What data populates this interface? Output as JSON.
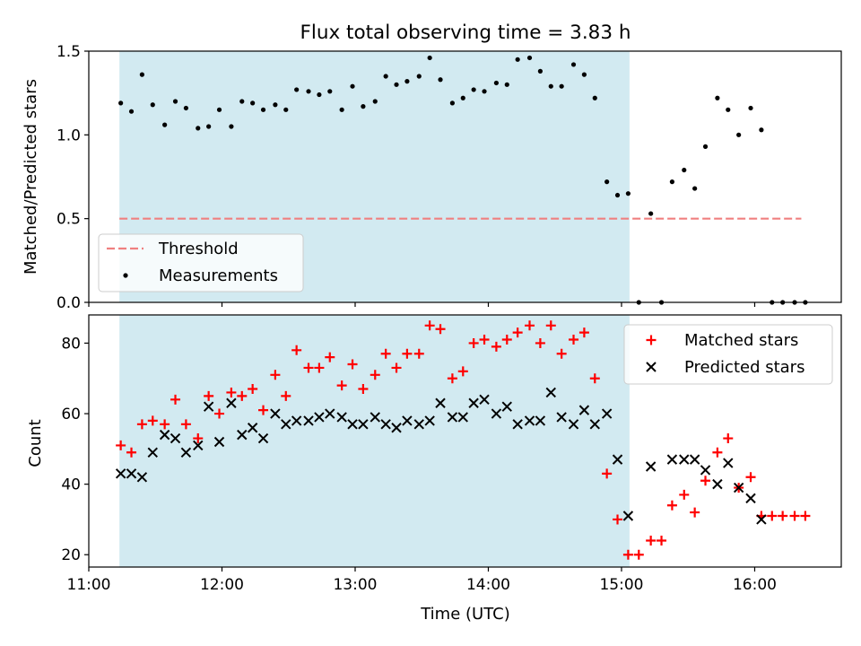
{
  "chart_data": [
    {
      "type": "scatter",
      "title": "Flux total observing time = 3.83 h",
      "xlabel": "",
      "ylabel": "Matched/Predicted stars",
      "xlim": [
        11.0,
        16.65
      ],
      "ylim": [
        0.0,
        1.5
      ],
      "yticks": [
        0.0,
        0.5,
        1.0,
        1.5
      ],
      "ytick_labels": [
        "0.0",
        "0.5",
        "1.0",
        "1.5"
      ],
      "shaded_span": [
        11.23,
        15.06
      ],
      "shade_color": "#add8e6",
      "grid": false,
      "legend": {
        "position": "lower-left",
        "entries": [
          "Threshold",
          "Measurements"
        ]
      },
      "series": [
        {
          "name": "Threshold",
          "kind": "line",
          "color": "#f08080",
          "style": "dashed",
          "x": [
            11.23,
            16.35
          ],
          "y": [
            0.5,
            0.5
          ]
        },
        {
          "name": "Measurements",
          "kind": "dot",
          "color": "#000000",
          "x": [
            11.24,
            11.32,
            11.4,
            11.48,
            11.57,
            11.65,
            11.73,
            11.82,
            11.9,
            11.98,
            12.07,
            12.15,
            12.23,
            12.31,
            12.4,
            12.48,
            12.56,
            12.65,
            12.73,
            12.81,
            12.9,
            12.98,
            13.06,
            13.15,
            13.23,
            13.31,
            13.39,
            13.48,
            13.56,
            13.64,
            13.73,
            13.81,
            13.89,
            13.97,
            14.06,
            14.14,
            14.22,
            14.31,
            14.39,
            14.47,
            14.55,
            14.64,
            14.72,
            14.8,
            14.89,
            14.97,
            15.05,
            15.13,
            15.22,
            15.3,
            15.38,
            15.47,
            15.55,
            15.63,
            15.72,
            15.8,
            15.88,
            15.97,
            16.05,
            16.13,
            16.21,
            16.3,
            16.38
          ],
          "y": [
            1.19,
            1.14,
            1.36,
            1.18,
            1.06,
            1.2,
            1.16,
            1.04,
            1.05,
            1.15,
            1.05,
            1.2,
            1.19,
            1.15,
            1.18,
            1.15,
            1.27,
            1.26,
            1.24,
            1.26,
            1.15,
            1.29,
            1.17,
            1.2,
            1.35,
            1.3,
            1.32,
            1.35,
            1.46,
            1.33,
            1.19,
            1.22,
            1.27,
            1.26,
            1.31,
            1.3,
            1.45,
            1.46,
            1.38,
            1.29,
            1.29,
            1.42,
            1.36,
            1.22,
            0.72,
            0.64,
            0.65,
            0.0,
            0.53,
            0.0,
            0.72,
            0.79,
            0.68,
            0.93,
            1.22,
            1.15,
            1.0,
            1.16,
            1.03,
            0.0,
            0.0,
            0.0,
            0.0
          ]
        }
      ]
    },
    {
      "type": "scatter",
      "title": "",
      "xlabel": "Time (UTC)",
      "ylabel": "Count",
      "xlim": [
        11.0,
        16.65
      ],
      "ylim": [
        16.5,
        88
      ],
      "yticks": [
        20,
        40,
        60,
        80
      ],
      "ytick_labels": [
        "20",
        "40",
        "60",
        "80"
      ],
      "xticks": [
        11,
        12,
        13,
        14,
        15,
        16
      ],
      "xtick_labels": [
        "11:00",
        "12:00",
        "13:00",
        "14:00",
        "15:00",
        "16:00"
      ],
      "shaded_span": [
        11.23,
        15.06
      ],
      "shade_color": "#add8e6",
      "grid": false,
      "legend": {
        "position": "top-right",
        "entries": [
          "Matched stars",
          "Predicted stars"
        ]
      },
      "series": [
        {
          "name": "Matched stars",
          "kind": "plus",
          "color": "#ff0000",
          "x": [
            11.24,
            11.32,
            11.4,
            11.48,
            11.57,
            11.65,
            11.73,
            11.82,
            11.9,
            11.98,
            12.07,
            12.15,
            12.23,
            12.31,
            12.4,
            12.48,
            12.56,
            12.65,
            12.73,
            12.81,
            12.9,
            12.98,
            13.06,
            13.15,
            13.23,
            13.31,
            13.39,
            13.48,
            13.56,
            13.64,
            13.73,
            13.81,
            13.89,
            13.97,
            14.06,
            14.14,
            14.22,
            14.31,
            14.39,
            14.47,
            14.55,
            14.64,
            14.72,
            14.8,
            14.89,
            14.97,
            15.05,
            15.13,
            15.22,
            15.3,
            15.38,
            15.47,
            15.55,
            15.63,
            15.72,
            15.8,
            15.88,
            15.97,
            16.05,
            16.13,
            16.21,
            16.3,
            16.38
          ],
          "y": [
            51,
            49,
            57,
            58,
            57,
            64,
            57,
            53,
            65,
            60,
            66,
            65,
            67,
            61,
            71,
            65,
            78,
            73,
            73,
            76,
            68,
            74,
            67,
            71,
            77,
            73,
            77,
            77,
            85,
            84,
            70,
            72,
            80,
            81,
            79,
            81,
            83,
            85,
            80,
            85,
            77,
            81,
            83,
            70,
            43,
            30,
            20,
            20,
            24,
            24,
            34,
            37,
            32,
            41,
            49,
            53,
            39,
            42,
            31,
            31,
            31,
            31,
            31
          ]
        },
        {
          "name": "Predicted stars",
          "kind": "x",
          "color": "#000000",
          "x": [
            11.24,
            11.32,
            11.4,
            11.48,
            11.57,
            11.65,
            11.73,
            11.82,
            11.9,
            11.98,
            12.07,
            12.15,
            12.23,
            12.31,
            12.4,
            12.48,
            12.56,
            12.65,
            12.73,
            12.81,
            12.9,
            12.98,
            13.06,
            13.15,
            13.23,
            13.31,
            13.39,
            13.48,
            13.56,
            13.64,
            13.73,
            13.81,
            13.89,
            13.97,
            14.06,
            14.14,
            14.22,
            14.31,
            14.39,
            14.47,
            14.55,
            14.64,
            14.72,
            14.8,
            14.89,
            14.97,
            15.05,
            15.22,
            15.38,
            15.47,
            15.55,
            15.63,
            15.72,
            15.8,
            15.88,
            15.97,
            16.05
          ],
          "y": [
            43,
            43,
            42,
            49,
            54,
            53,
            49,
            51,
            62,
            52,
            63,
            54,
            56,
            53,
            60,
            57,
            58,
            58,
            59,
            60,
            59,
            57,
            57,
            59,
            57,
            56,
            58,
            57,
            58,
            63,
            59,
            59,
            63,
            64,
            60,
            62,
            57,
            58,
            58,
            66,
            59,
            57,
            61,
            57,
            60,
            47,
            31,
            45,
            47,
            47,
            47,
            44,
            40,
            46,
            39,
            36,
            30
          ]
        }
      ]
    }
  ]
}
